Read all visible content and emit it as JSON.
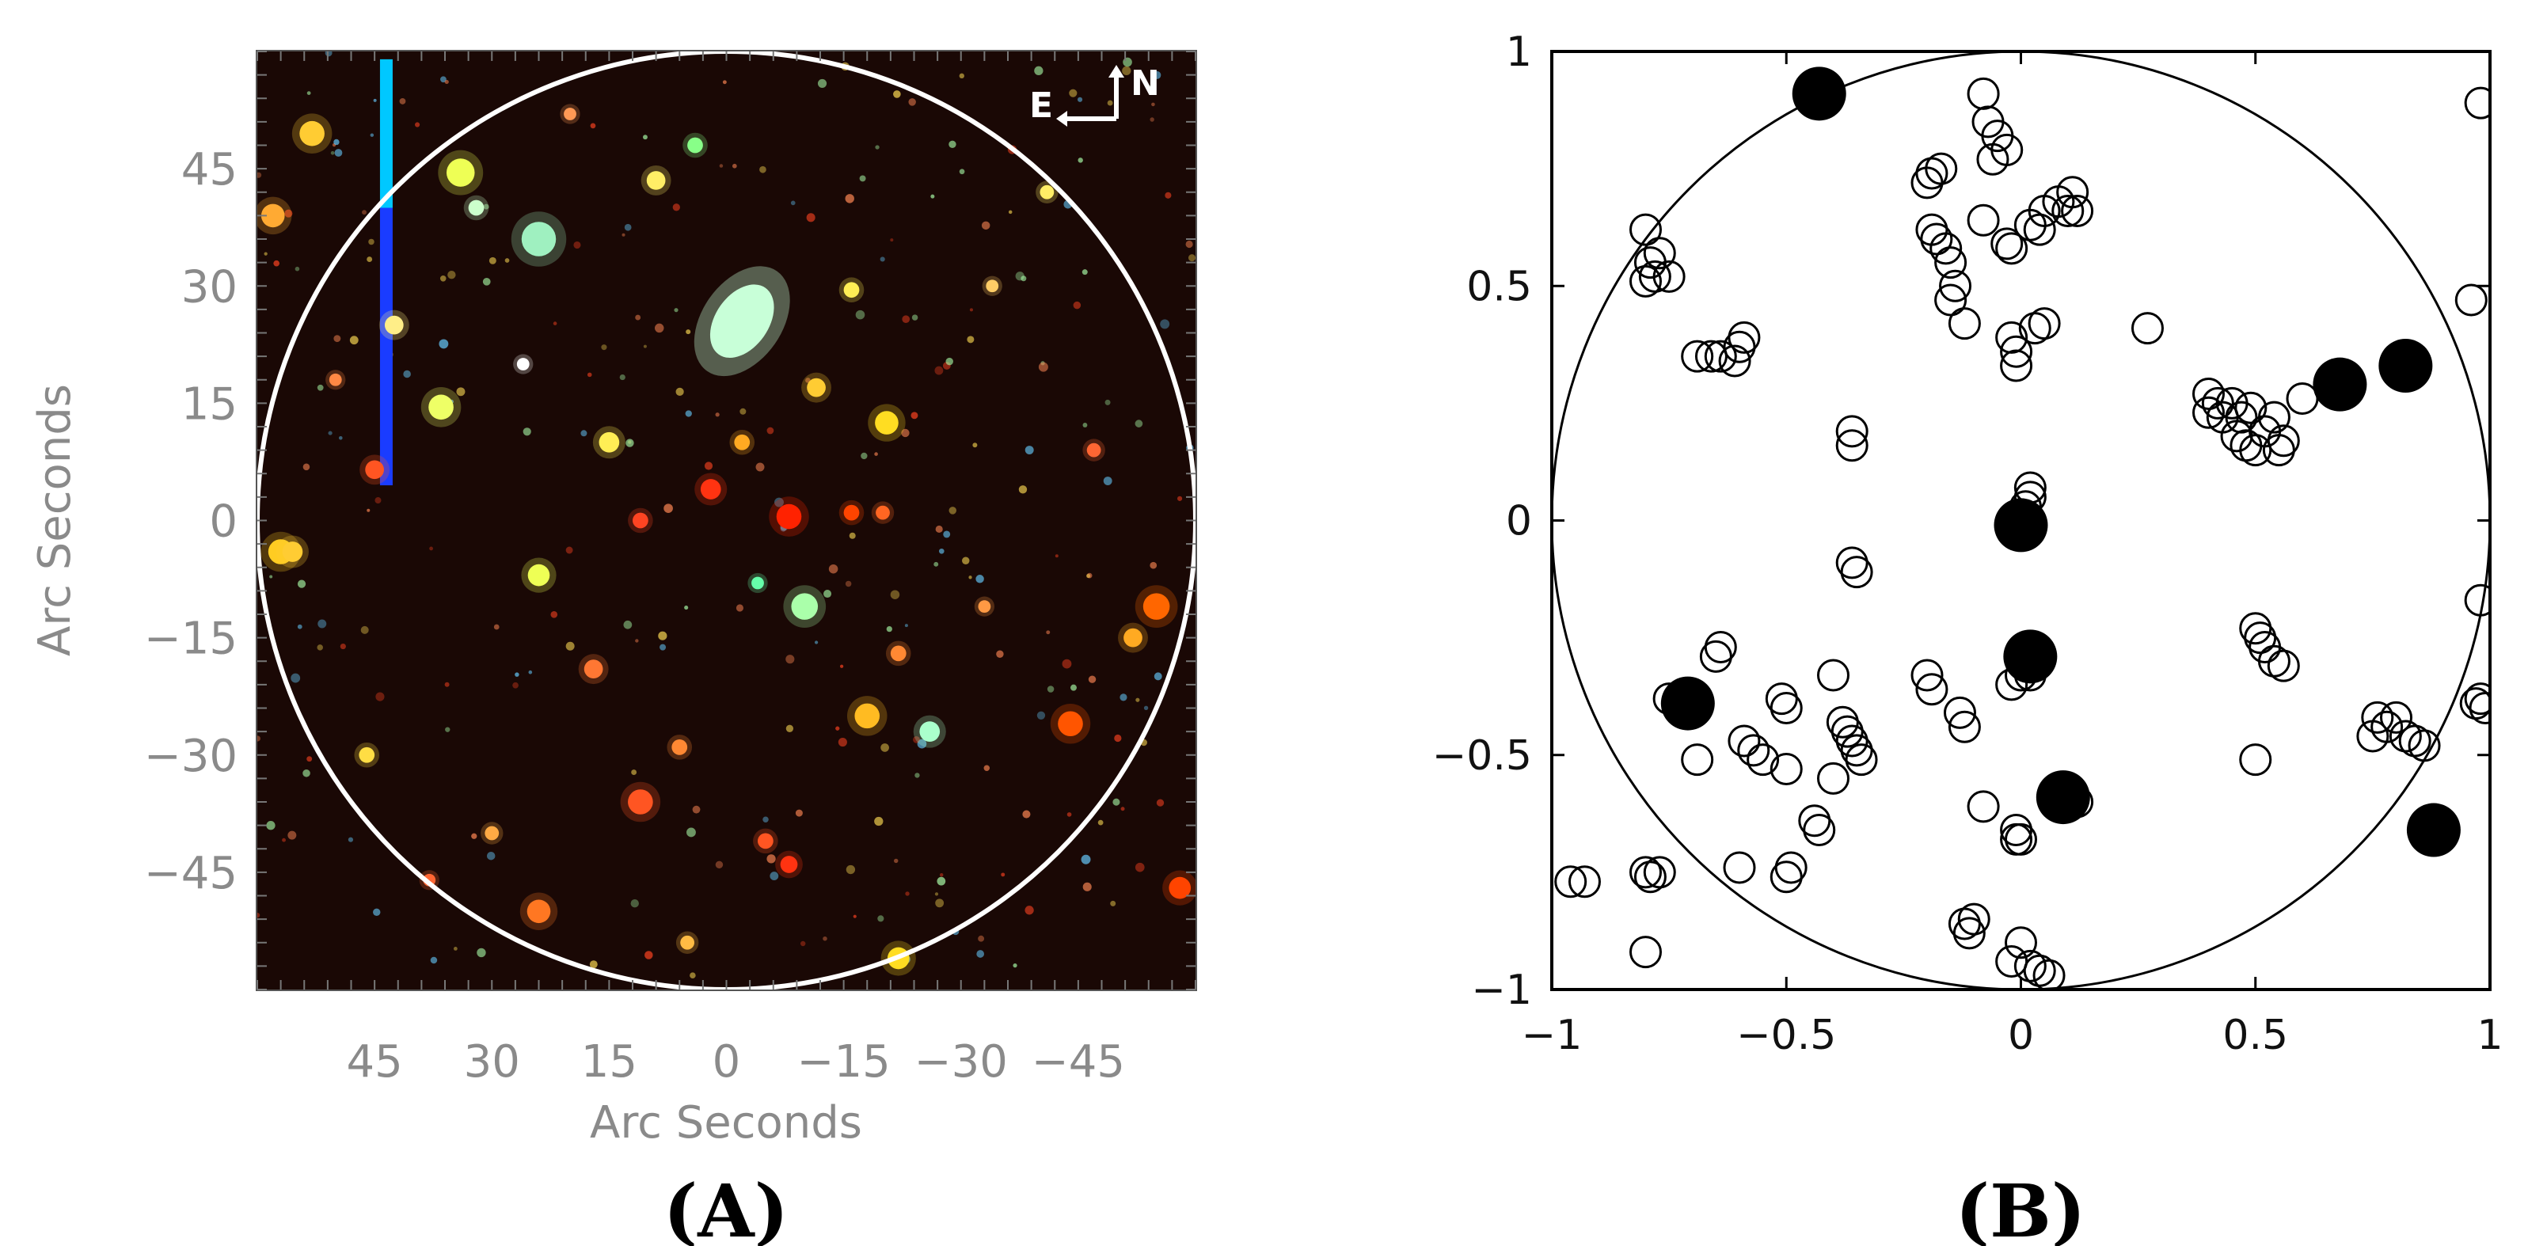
{
  "chart_data": [
    {
      "type": "scatter",
      "panel_label": "(A)",
      "xlabel": "Arc Seconds",
      "ylabel": "Arc Seconds",
      "xticks": [
        "45",
        "30",
        "15",
        "0",
        "−15",
        "−30",
        "−45"
      ],
      "xtick_values": [
        45,
        30,
        15,
        0,
        -15,
        -30,
        -45
      ],
      "yticks": [
        "45",
        "30",
        "15",
        "0",
        "−15",
        "−30",
        "−45"
      ],
      "ytick_values": [
        45,
        30,
        15,
        0,
        -15,
        -30,
        -45
      ],
      "xlim": [
        60,
        -60
      ],
      "ylim": [
        -60,
        60
      ],
      "compass": {
        "east": "E",
        "north": "N"
      },
      "background_color": "#1a0805",
      "circle_color": "#ffffff",
      "streak_colors": [
        "#00c8ff",
        "#1a3cff"
      ],
      "streak": {
        "x": 43.5,
        "y_top": 59,
        "y_bottom": 4.5,
        "y_color_change": 40
      },
      "sources": [
        {
          "x": 24,
          "y": 36,
          "r": 2.2,
          "color": "#9ff0c0"
        },
        {
          "x": 4,
          "y": 48,
          "r": 1.0,
          "color": "#88ff88"
        },
        {
          "x": 58,
          "y": 39,
          "r": 1.5,
          "color": "#ffaa33"
        },
        {
          "x": 45,
          "y": 6.5,
          "r": 1.2,
          "color": "#ff5522"
        },
        {
          "x": 36.5,
          "y": 14.5,
          "r": 1.6,
          "color": "#eeff66"
        },
        {
          "x": 42.5,
          "y": 25,
          "r": 1.2,
          "color": "#ffee88"
        },
        {
          "x": 34,
          "y": 44.5,
          "r": 1.8,
          "color": "#eeff55"
        },
        {
          "x": 32,
          "y": 40,
          "r": 1.0,
          "color": "#ccffcc"
        },
        {
          "x": 53,
          "y": 49.5,
          "r": 1.6,
          "color": "#ffcc33"
        },
        {
          "x": 57,
          "y": -4,
          "r": 1.6,
          "color": "#ffcc22"
        },
        {
          "x": 24,
          "y": -7,
          "r": 1.4,
          "color": "#eeff55"
        },
        {
          "x": 15,
          "y": 10,
          "r": 1.3,
          "color": "#ffee55"
        },
        {
          "x": 9,
          "y": 43.5,
          "r": 1.2,
          "color": "#ffee66"
        },
        {
          "x": 11,
          "y": 0,
          "r": 1.0,
          "color": "#ff4422"
        },
        {
          "x": 2,
          "y": 4,
          "r": 1.3,
          "color": "#ff3311"
        },
        {
          "x": -8,
          "y": 0.5,
          "r": 1.6,
          "color": "#ff2200"
        },
        {
          "x": -16,
          "y": 1,
          "r": 1.0,
          "color": "#ff4400"
        },
        {
          "x": -20,
          "y": 1,
          "r": 0.9,
          "color": "#ff6622"
        },
        {
          "x": -2,
          "y": 10,
          "r": 1.0,
          "color": "#ffaa22"
        },
        {
          "x": -11.5,
          "y": 17,
          "r": 1.2,
          "color": "#ffcc33"
        },
        {
          "x": -20.5,
          "y": 12.5,
          "r": 1.5,
          "color": "#ffdd22"
        },
        {
          "x": -16,
          "y": 29.5,
          "r": 1.0,
          "color": "#ffee55"
        },
        {
          "x": -10,
          "y": -11,
          "r": 1.7,
          "color": "#aaffaa"
        },
        {
          "x": -22,
          "y": -17,
          "r": 1.0,
          "color": "#ff8833"
        },
        {
          "x": -18,
          "y": -25,
          "r": 1.6,
          "color": "#ffbb22"
        },
        {
          "x": -26,
          "y": -27,
          "r": 1.3,
          "color": "#aaffcc"
        },
        {
          "x": 17,
          "y": -19,
          "r": 1.2,
          "color": "#ff7733"
        },
        {
          "x": 11,
          "y": -36,
          "r": 1.6,
          "color": "#ff5522"
        },
        {
          "x": 24,
          "y": -50,
          "r": 1.5,
          "color": "#ff7722"
        },
        {
          "x": -22,
          "y": -56,
          "r": 1.4,
          "color": "#ffdd22"
        },
        {
          "x": -55,
          "y": -11,
          "r": 1.7,
          "color": "#ff6600"
        },
        {
          "x": -52,
          "y": -15,
          "r": 1.2,
          "color": "#ffaa22"
        },
        {
          "x": -44,
          "y": -26,
          "r": 1.6,
          "color": "#ff5500"
        },
        {
          "x": -58,
          "y": -47,
          "r": 1.4,
          "color": "#ff4400"
        },
        {
          "x": 55.5,
          "y": -4,
          "r": 1.3,
          "color": "#ffcc33"
        },
        {
          "x": 46,
          "y": -30,
          "r": 1.0,
          "color": "#ffdd44"
        },
        {
          "x": 6,
          "y": -29,
          "r": 1.0,
          "color": "#ff8833"
        },
        {
          "x": -5,
          "y": -41,
          "r": 1.0,
          "color": "#ff5522"
        },
        {
          "x": 26,
          "y": 20,
          "r": 0.8,
          "color": "#ffffff"
        },
        {
          "x": -4,
          "y": -8,
          "r": 0.8,
          "color": "#66ffaa"
        },
        {
          "x": -33,
          "y": -11,
          "r": 0.8,
          "color": "#ff9944"
        },
        {
          "x": -41,
          "y": 42,
          "r": 0.9,
          "color": "#ffee66"
        },
        {
          "x": 50,
          "y": 18,
          "r": 0.8,
          "color": "#ff8844"
        },
        {
          "x": 30,
          "y": -40,
          "r": 0.9,
          "color": "#ffaa44"
        },
        {
          "x": -34,
          "y": 30,
          "r": 0.8,
          "color": "#ffcc66"
        },
        {
          "x": 38,
          "y": -46,
          "r": 0.8,
          "color": "#ff6633"
        },
        {
          "x": -8,
          "y": -44,
          "r": 1.1,
          "color": "#ff3311"
        },
        {
          "x": 5,
          "y": -54,
          "r": 0.9,
          "color": "#ffbb44"
        },
        {
          "x": 20,
          "y": 52,
          "r": 0.8,
          "color": "#ff9955"
        },
        {
          "x": -47,
          "y": 9,
          "r": 0.9,
          "color": "#ff6633"
        }
      ],
      "galaxy": {
        "x": -2,
        "y": 25.5,
        "rx": 3.4,
        "ry": 5.2,
        "color": "#c8ffd8"
      }
    },
    {
      "type": "scatter",
      "panel_label": "(B)",
      "xticks": [
        "−1",
        "−0.5",
        "0",
        "0.5",
        "1"
      ],
      "xtick_values": [
        -1,
        -0.5,
        0,
        0.5,
        1
      ],
      "yticks": [
        "1",
        "0.5",
        "0",
        "−0.5",
        "−1"
      ],
      "ytick_values": [
        1,
        0.5,
        0,
        -0.5,
        -1
      ],
      "xlim": [
        -1,
        1
      ],
      "ylim": [
        -1,
        1
      ],
      "unit_circle": true,
      "filled_points": [
        [
          -0.43,
          0.91
        ],
        [
          0.68,
          0.29
        ],
        [
          0.82,
          0.33
        ],
        [
          0.0,
          -0.01
        ],
        [
          0.02,
          -0.29
        ],
        [
          -0.71,
          -0.39
        ],
        [
          0.09,
          -0.59
        ],
        [
          0.88,
          -0.66
        ]
      ],
      "open_points": [
        [
          -0.8,
          0.62
        ],
        [
          -0.79,
          0.55
        ],
        [
          -0.8,
          0.51
        ],
        [
          -0.78,
          0.52
        ],
        [
          -0.77,
          0.57
        ],
        [
          -0.75,
          0.52
        ],
        [
          -0.69,
          0.35
        ],
        [
          -0.66,
          0.35
        ],
        [
          -0.64,
          0.35
        ],
        [
          -0.61,
          0.34
        ],
        [
          -0.6,
          0.37
        ],
        [
          -0.59,
          0.39
        ],
        [
          -0.2,
          0.72
        ],
        [
          -0.19,
          0.74
        ],
        [
          -0.17,
          0.75
        ],
        [
          -0.19,
          0.62
        ],
        [
          -0.18,
          0.6
        ],
        [
          -0.16,
          0.58
        ],
        [
          -0.15,
          0.55
        ],
        [
          -0.14,
          0.5
        ],
        [
          -0.15,
          0.47
        ],
        [
          -0.12,
          0.42
        ],
        [
          -0.08,
          0.91
        ],
        [
          -0.07,
          0.85
        ],
        [
          -0.05,
          0.82
        ],
        [
          -0.03,
          0.79
        ],
        [
          -0.06,
          0.77
        ],
        [
          -0.03,
          0.59
        ],
        [
          -0.02,
          0.58
        ],
        [
          -0.08,
          0.64
        ],
        [
          0.02,
          0.63
        ],
        [
          0.04,
          0.62
        ],
        [
          0.05,
          0.66
        ],
        [
          0.08,
          0.68
        ],
        [
          0.1,
          0.66
        ],
        [
          0.12,
          0.66
        ],
        [
          0.11,
          0.7
        ],
        [
          -0.02,
          0.39
        ],
        [
          -0.01,
          0.36
        ],
        [
          -0.01,
          0.33
        ],
        [
          0.03,
          0.41
        ],
        [
          0.05,
          0.42
        ],
        [
          0.27,
          0.41
        ],
        [
          -0.36,
          0.19
        ],
        [
          -0.36,
          0.16
        ],
        [
          -0.35,
          -0.11
        ],
        [
          -0.36,
          -0.09
        ],
        [
          0.02,
          0.07
        ],
        [
          0.02,
          0.05
        ],
        [
          0.01,
          0.03
        ],
        [
          0.4,
          0.27
        ],
        [
          0.42,
          0.25
        ],
        [
          0.4,
          0.23
        ],
        [
          0.43,
          0.22
        ],
        [
          0.45,
          0.25
        ],
        [
          0.47,
          0.22
        ],
        [
          0.49,
          0.24
        ],
        [
          0.46,
          0.18
        ],
        [
          0.48,
          0.16
        ],
        [
          0.5,
          0.15
        ],
        [
          0.52,
          0.19
        ],
        [
          0.54,
          0.22
        ],
        [
          0.55,
          0.15
        ],
        [
          0.56,
          0.17
        ],
        [
          0.6,
          0.26
        ],
        [
          0.96,
          0.47
        ],
        [
          0.98,
          0.89
        ],
        [
          0.98,
          -0.17
        ],
        [
          -0.64,
          -0.27
        ],
        [
          -0.65,
          -0.29
        ],
        [
          -0.51,
          -0.38
        ],
        [
          -0.5,
          -0.4
        ],
        [
          -0.59,
          -0.47
        ],
        [
          -0.57,
          -0.49
        ],
        [
          -0.55,
          -0.51
        ],
        [
          -0.5,
          -0.53
        ],
        [
          -0.4,
          -0.33
        ],
        [
          -0.38,
          -0.43
        ],
        [
          -0.37,
          -0.45
        ],
        [
          -0.36,
          -0.47
        ],
        [
          -0.35,
          -0.49
        ],
        [
          -0.34,
          -0.51
        ],
        [
          -0.4,
          -0.55
        ],
        [
          -0.44,
          -0.64
        ],
        [
          -0.43,
          -0.66
        ],
        [
          -0.49,
          -0.74
        ],
        [
          -0.5,
          -0.76
        ],
        [
          -0.6,
          -0.74
        ],
        [
          -0.2,
          -0.33
        ],
        [
          -0.19,
          -0.36
        ],
        [
          -0.13,
          -0.41
        ],
        [
          -0.12,
          -0.44
        ],
        [
          -0.1,
          -0.85
        ],
        [
          -0.12,
          -0.86
        ],
        [
          -0.11,
          -0.88
        ],
        [
          -0.02,
          -0.94
        ],
        [
          0.0,
          -0.9
        ],
        [
          0.02,
          -0.95
        ],
        [
          0.04,
          -0.96
        ],
        [
          0.06,
          -0.97
        ],
        [
          -0.01,
          -0.66
        ],
        [
          -0.01,
          -0.68
        ],
        [
          0.0,
          -0.68
        ],
        [
          -0.02,
          -0.35
        ],
        [
          0.0,
          -0.33
        ],
        [
          0.02,
          -0.33
        ],
        [
          -0.08,
          -0.61
        ],
        [
          0.1,
          -0.61
        ],
        [
          0.12,
          -0.6
        ],
        [
          -0.69,
          -0.51
        ],
        [
          -0.75,
          -0.38
        ],
        [
          -0.8,
          -0.75
        ],
        [
          -0.79,
          -0.76
        ],
        [
          -0.77,
          -0.75
        ],
        [
          -0.8,
          -0.92
        ],
        [
          -0.96,
          -0.77
        ],
        [
          -0.93,
          -0.77
        ],
        [
          0.5,
          -0.23
        ],
        [
          0.51,
          -0.25
        ],
        [
          0.52,
          -0.27
        ],
        [
          0.54,
          -0.3
        ],
        [
          0.56,
          -0.31
        ],
        [
          0.5,
          -0.51
        ],
        [
          0.76,
          -0.42
        ],
        [
          0.78,
          -0.44
        ],
        [
          0.8,
          -0.42
        ],
        [
          0.82,
          -0.46
        ],
        [
          0.84,
          -0.47
        ],
        [
          0.86,
          -0.48
        ],
        [
          0.75,
          -0.46
        ],
        [
          0.97,
          -0.39
        ],
        [
          0.99,
          -0.4
        ],
        [
          0.98,
          -0.38
        ]
      ]
    }
  ]
}
